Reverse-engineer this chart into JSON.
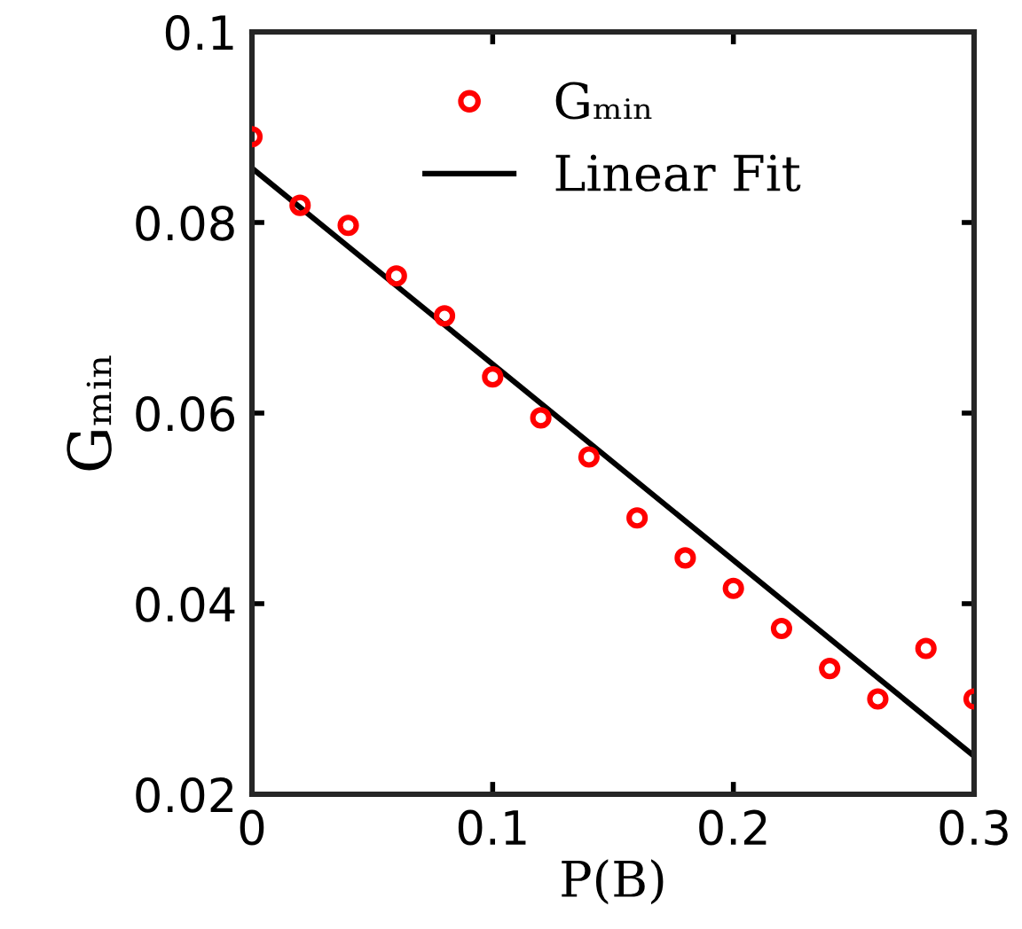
{
  "chart_data": {
    "type": "scatter",
    "xlabel": "P(B)",
    "ylabel": "Gₘᵢₙ",
    "x": [
      0,
      0.02,
      0.04,
      0.06,
      0.08,
      0.1,
      0.12,
      0.14,
      0.16,
      0.18,
      0.2,
      0.22,
      0.24,
      0.26,
      0.28,
      0.3
    ],
    "series": [
      {
        "name": "Gₘᵢₙ",
        "color": "#ff0000",
        "marker": "circle",
        "values": [
          0.089,
          0.0818,
          0.0797,
          0.0744,
          0.0702,
          0.0638,
          0.0595,
          0.0554,
          0.049,
          0.0448,
          0.0416,
          0.0374,
          0.0332,
          0.03,
          0.0353,
          0.03
        ]
      },
      {
        "name": "Linear Fit",
        "type": "line",
        "color": "#000000",
        "line_style": "solid",
        "x": [
          0,
          0.3
        ],
        "values": [
          0.0857,
          0.024
        ]
      }
    ],
    "xlim": [
      0,
      0.3
    ],
    "xticks": [
      0,
      0.1,
      0.2,
      0.3
    ],
    "ylim": [
      0.02,
      0.1
    ],
    "yticks": [
      0.02,
      0.04,
      0.06,
      0.08,
      0.1
    ],
    "grid": false,
    "legend": "top"
  }
}
